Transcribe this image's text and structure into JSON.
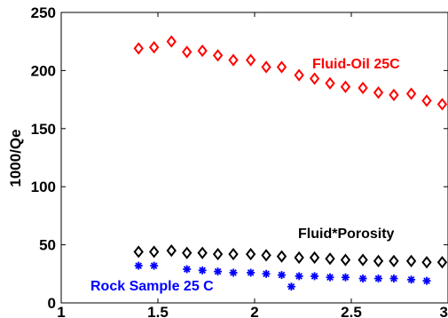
{
  "chart_data": {
    "type": "scatter",
    "title": "",
    "xlabel": "",
    "ylabel": "1000/Qe",
    "xlim": [
      1,
      3
    ],
    "ylim": [
      0,
      250
    ],
    "xticks": [
      "1",
      "1.5",
      "2",
      "2.5",
      "3"
    ],
    "yticks": [
      "0",
      "50",
      "100",
      "150",
      "200",
      "250"
    ],
    "grid": false,
    "legend": "none",
    "series": [
      {
        "name": "Fluid-Oil 25C",
        "color": "#ff0000",
        "marker": "diamond",
        "x": [
          1.4,
          1.48,
          1.57,
          1.65,
          1.73,
          1.81,
          1.89,
          1.98,
          2.06,
          2.14,
          2.23,
          2.31,
          2.39,
          2.47,
          2.56,
          2.64,
          2.72,
          2.81,
          2.89,
          2.97
        ],
        "y": [
          219,
          220,
          225,
          216,
          217,
          213,
          209,
          209,
          203,
          203,
          196,
          193,
          189,
          186,
          185,
          181,
          179,
          180,
          174,
          171
        ]
      },
      {
        "name": "Fluid*Porosity",
        "color": "#000000",
        "marker": "diamond",
        "x": [
          1.4,
          1.48,
          1.57,
          1.65,
          1.73,
          1.81,
          1.89,
          1.98,
          2.06,
          2.14,
          2.23,
          2.31,
          2.39,
          2.47,
          2.56,
          2.64,
          2.72,
          2.81,
          2.89,
          2.97
        ],
        "y": [
          44,
          44,
          45,
          43,
          43,
          42,
          42,
          42,
          41,
          40,
          39,
          39,
          38,
          37,
          37,
          36,
          36,
          36,
          35,
          35
        ]
      },
      {
        "name": "Rock Sample 25 C",
        "color": "#0000ff",
        "marker": "asterisk",
        "x": [
          1.4,
          1.48,
          1.65,
          1.73,
          1.81,
          1.89,
          1.98,
          2.06,
          2.14,
          2.19,
          2.23,
          2.31,
          2.39,
          2.47,
          2.56,
          2.64,
          2.72,
          2.81,
          2.89
        ],
        "y": [
          32,
          32,
          29,
          28,
          27,
          26,
          26,
          25,
          24,
          14,
          23,
          23,
          22,
          22,
          21,
          21,
          21,
          20,
          19
        ]
      }
    ],
    "annotations": [
      {
        "text": "Fluid-Oil 25C",
        "color": "#ff0000"
      },
      {
        "text": "Fluid*Porosity",
        "color": "#000000"
      },
      {
        "text": "Rock Sample 25 C",
        "color": "#0000ff"
      }
    ]
  }
}
